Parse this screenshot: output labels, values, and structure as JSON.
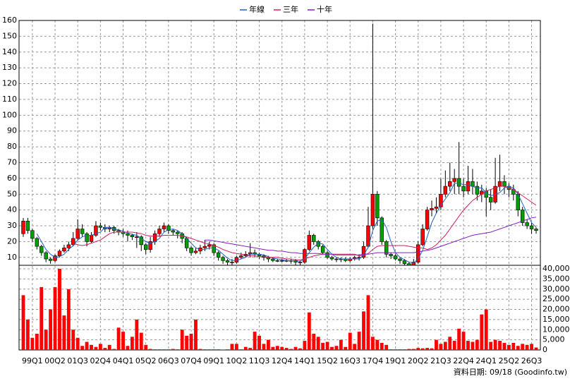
{
  "chart_data": {
    "type": "candlestick",
    "categories": [
      null,
      null,
      "99Q1",
      null,
      null,
      null,
      null,
      "00Q2",
      null,
      null,
      null,
      null,
      "01Q3",
      null,
      null,
      null,
      null,
      "02Q4",
      null,
      null,
      null,
      null,
      "04Q1",
      null,
      null,
      null,
      null,
      "05Q2",
      null,
      null,
      null,
      null,
      "06Q3",
      null,
      null,
      null,
      null,
      "07Q4",
      null,
      null,
      null,
      null,
      "09Q1",
      null,
      null,
      null,
      null,
      "10Q2",
      null,
      null,
      null,
      null,
      "11Q3",
      null,
      null,
      null,
      null,
      "12Q4",
      null,
      null,
      null,
      null,
      "14Q1",
      null,
      null,
      null,
      null,
      "15Q2",
      null,
      null,
      null,
      null,
      "16Q3",
      null,
      null,
      null,
      null,
      "17Q4",
      null,
      null,
      null,
      null,
      "19Q1",
      null,
      null,
      null,
      null,
      "20Q2",
      null,
      null,
      null,
      null,
      "21Q3",
      null,
      null,
      null,
      null,
      "22Q4",
      null,
      null,
      null,
      null,
      "24Q1",
      null,
      null,
      null,
      null,
      "25Q2",
      null,
      null,
      null,
      null,
      "26Q3",
      null
    ],
    "open": [
      25,
      33,
      27,
      22,
      17,
      13,
      9,
      8,
      11,
      14,
      16,
      18,
      22,
      28,
      25,
      20,
      24,
      30,
      29,
      28,
      29,
      27,
      26,
      25,
      24,
      23,
      23,
      18,
      15,
      20,
      25,
      28,
      30,
      27,
      26,
      25,
      22,
      16,
      13,
      14,
      16,
      17,
      18,
      13,
      10,
      8,
      7,
      7,
      10,
      11,
      12,
      13,
      12,
      11,
      10,
      9,
      8,
      8,
      8,
      8,
      8,
      7,
      7,
      15,
      24,
      20,
      17,
      13,
      10,
      9,
      9,
      9,
      8,
      9,
      10,
      10,
      17,
      30,
      50,
      35,
      20,
      12,
      11,
      9,
      8,
      6,
      5,
      7,
      18,
      28,
      40,
      41,
      42,
      50,
      55,
      58,
      60,
      55,
      52,
      58,
      55,
      50,
      52,
      48,
      45,
      55,
      58,
      55,
      53,
      50,
      40,
      32,
      30,
      28
    ],
    "high": [
      35,
      35,
      28,
      23,
      18,
      14,
      10,
      12,
      15,
      18,
      20,
      26,
      34,
      31,
      26,
      26,
      33,
      32,
      31,
      30,
      30,
      28,
      28,
      27,
      25,
      26,
      24,
      19,
      23,
      27,
      30,
      32,
      31,
      28,
      27,
      26,
      23,
      17,
      16,
      18,
      21,
      20,
      19,
      14,
      11,
      9,
      9,
      11,
      13,
      14,
      19,
      15,
      13,
      12,
      11,
      10,
      9,
      9,
      9,
      9,
      9,
      8,
      16,
      27,
      25,
      21,
      18,
      14,
      11,
      10,
      10,
      10,
      10,
      11,
      12,
      20,
      42,
      158,
      52,
      36,
      21,
      13,
      12,
      10,
      9,
      7,
      9,
      20,
      31,
      42,
      46,
      48,
      60,
      65,
      70,
      66,
      83,
      60,
      68,
      66,
      58,
      56,
      54,
      53,
      73,
      75,
      62,
      57,
      56,
      52,
      42,
      34,
      32,
      29
    ],
    "low": [
      23,
      25,
      20,
      15,
      11,
      7,
      6,
      7,
      10,
      13,
      14,
      17,
      21,
      23,
      17,
      19,
      23,
      27,
      26,
      26,
      25,
      24,
      23,
      20,
      21,
      16,
      14,
      12,
      13,
      18,
      23,
      26,
      25,
      24,
      22,
      19,
      14,
      11,
      12,
      12,
      14,
      15,
      11,
      8,
      6,
      5,
      5,
      6,
      9,
      10,
      10,
      10,
      9,
      8,
      7,
      7,
      7,
      7,
      7,
      6,
      5,
      5,
      6,
      14,
      18,
      15,
      12,
      9,
      8,
      7,
      7,
      7,
      7,
      8,
      8,
      9,
      16,
      28,
      30,
      18,
      10,
      9,
      8,
      6,
      5,
      5,
      5,
      6,
      17,
      27,
      36,
      38,
      40,
      48,
      52,
      50,
      50,
      48,
      50,
      50,
      46,
      45,
      36,
      40,
      44,
      52,
      50,
      48,
      46,
      36,
      30,
      28,
      25,
      25
    ],
    "close": [
      33,
      27,
      22,
      17,
      13,
      9,
      8,
      11,
      14,
      16,
      18,
      22,
      28,
      25,
      20,
      24,
      30,
      29,
      28,
      29,
      27,
      26,
      25,
      24,
      23,
      23,
      18,
      15,
      20,
      25,
      28,
      30,
      27,
      26,
      25,
      22,
      16,
      13,
      14,
      16,
      17,
      18,
      13,
      10,
      8,
      7,
      7,
      10,
      11,
      12,
      13,
      12,
      11,
      10,
      9,
      8,
      8,
      8,
      8,
      8,
      7,
      7,
      15,
      24,
      20,
      17,
      13,
      10,
      9,
      9,
      9,
      8,
      9,
      10,
      10,
      17,
      30,
      50,
      35,
      20,
      12,
      11,
      9,
      8,
      6,
      5,
      7,
      18,
      28,
      40,
      41,
      42,
      50,
      55,
      58,
      60,
      55,
      52,
      58,
      55,
      50,
      52,
      48,
      45,
      55,
      58,
      55,
      53,
      50,
      40,
      32,
      30,
      28,
      27
    ],
    "up_color": "#ff0000",
    "down_color": "#00a000",
    "ylim": [
      5,
      160
    ],
    "yticks": [
      10,
      20,
      30,
      40,
      50,
      60,
      70,
      80,
      90,
      100,
      110,
      120,
      130,
      140,
      150,
      160
    ],
    "grid": true,
    "series": [
      {
        "name": "年線",
        "color": "#2060c0",
        "values": [
          null,
          null,
          null,
          25,
          20,
          15,
          12,
          10,
          10.5,
          12,
          15,
          17.5,
          21,
          23,
          24,
          24,
          25,
          26,
          29,
          29,
          28,
          27.5,
          26.5,
          25.5,
          24.5,
          24,
          22,
          20,
          19,
          20,
          22,
          26,
          27.5,
          28,
          27,
          25,
          22,
          19,
          16,
          15,
          15,
          16,
          16,
          14.5,
          12,
          9.5,
          8,
          8,
          9,
          10,
          12,
          12,
          12,
          11.5,
          10.5,
          9.5,
          9,
          8.5,
          8,
          8,
          7.8,
          7.5,
          9,
          13,
          16.5,
          19,
          18.5,
          15,
          12,
          10,
          9,
          9,
          9,
          9,
          9,
          11.5,
          16.5,
          27,
          33,
          34,
          29,
          20,
          13,
          10,
          8.5,
          7,
          6.5,
          9,
          14.5,
          23,
          32,
          38,
          43,
          47,
          51,
          57,
          57,
          56,
          56,
          55,
          54,
          54,
          51,
          49,
          50,
          51,
          54,
          55,
          54,
          50,
          44,
          38,
          32,
          29
        ]
      },
      {
        "name": "三年",
        "color": "#d0205a",
        "values": [
          null,
          null,
          null,
          null,
          null,
          null,
          null,
          null,
          null,
          null,
          null,
          19,
          18,
          17.5,
          18,
          19,
          20,
          21,
          23,
          25,
          26,
          26,
          26,
          26,
          26,
          25.5,
          25,
          24,
          23.5,
          23.5,
          23.5,
          24,
          24,
          24,
          24,
          23.5,
          23,
          22,
          21,
          20,
          19,
          18.5,
          17.5,
          16.5,
          15,
          14,
          13,
          12.5,
          12,
          11.5,
          11,
          11,
          10.5,
          10.5,
          10,
          10,
          10,
          9.5,
          9,
          9,
          8.5,
          8.5,
          9,
          10,
          11,
          11.5,
          12,
          12,
          12,
          12,
          12,
          12,
          12,
          12,
          11,
          11.5,
          12.5,
          15,
          17,
          17.5,
          17.5,
          17.5,
          17.5,
          17.5,
          17.5,
          17,
          16.5,
          16,
          16,
          15,
          16,
          18,
          21,
          24,
          28,
          32,
          36,
          40,
          43,
          46,
          48,
          50,
          52,
          53,
          54,
          55,
          55,
          54,
          53,
          51,
          49,
          47,
          45,
          43
        ]
      },
      {
        "name": "十年",
        "color": "#8020c0",
        "values": [
          null,
          null,
          null,
          null,
          null,
          null,
          null,
          null,
          null,
          null,
          null,
          null,
          null,
          null,
          null,
          null,
          null,
          null,
          null,
          null,
          null,
          null,
          null,
          null,
          null,
          null,
          null,
          null,
          null,
          null,
          null,
          null,
          null,
          null,
          null,
          null,
          null,
          null,
          null,
          null,
          21,
          21,
          20.5,
          20,
          19.5,
          19,
          18.5,
          18,
          17.5,
          17,
          16.5,
          16,
          15.5,
          15,
          14.5,
          14.5,
          14,
          14,
          13.5,
          13,
          13,
          12.5,
          12.5,
          12.5,
          12.5,
          12.5,
          12,
          12,
          12,
          11.5,
          11.5,
          11.5,
          11.5,
          11.5,
          11.5,
          12,
          12,
          12.5,
          13,
          13,
          13,
          13,
          13,
          13,
          13,
          13,
          13,
          13.5,
          14,
          14.5,
          15,
          16,
          17,
          18,
          19,
          20,
          21,
          22,
          23,
          24,
          24.5,
          25,
          25.5,
          26,
          27,
          28,
          29,
          30,
          31,
          32,
          33,
          34,
          35,
          35.5
        ]
      }
    ],
    "volume": {
      "color": "#ff0000",
      "values": [
        27000,
        15000,
        6000,
        8000,
        31000,
        10000,
        20000,
        31000,
        40000,
        17000,
        30000,
        10000,
        6000,
        2000,
        4000,
        2500,
        1500,
        3000,
        1000,
        2500,
        500,
        11000,
        9000,
        2000,
        6500,
        15000,
        8500,
        2500,
        500,
        300,
        300,
        300,
        300,
        500,
        300,
        10000,
        7000,
        8000,
        15000,
        500,
        300,
        300,
        300,
        300,
        200,
        300,
        3000,
        3000,
        300,
        1500,
        1000,
        9000,
        7000,
        3000,
        5000,
        1500,
        2000,
        1500,
        1000,
        500,
        1500,
        800,
        4500,
        18500,
        8000,
        6500,
        3500,
        4000,
        1500,
        2000,
        5000,
        1500,
        8500,
        3000,
        9000,
        19000,
        27000,
        6500,
        5000,
        3500,
        2500,
        300,
        300,
        300,
        300,
        500,
        500,
        1000,
        800,
        1000,
        800,
        5000,
        3000,
        4000,
        6500,
        4500,
        10500,
        9000,
        4500,
        4000,
        5000,
        17500,
        20000,
        4000,
        5000,
        4500,
        3500,
        2500,
        3500,
        2000,
        3000,
        2500,
        3000,
        1200
      ],
      "y2lim": [
        0,
        40000
      ],
      "y2ticks": [
        0,
        {
          "value": 5000,
          "label": "5,000"
        },
        {
          "value": 10000,
          "label": "10,000"
        },
        {
          "value": 15000,
          "label": "15,000"
        },
        {
          "value": 20000,
          "label": "20,000"
        },
        {
          "value": 25000,
          "label": "25,000"
        },
        {
          "value": 30000,
          "label": "30,000"
        },
        {
          "value": 35000,
          "label": "35,000"
        },
        {
          "value": 40000,
          "label": "40,000"
        }
      ]
    }
  },
  "footer": "資料日期: 09/18 (Goodinfo.tw)"
}
